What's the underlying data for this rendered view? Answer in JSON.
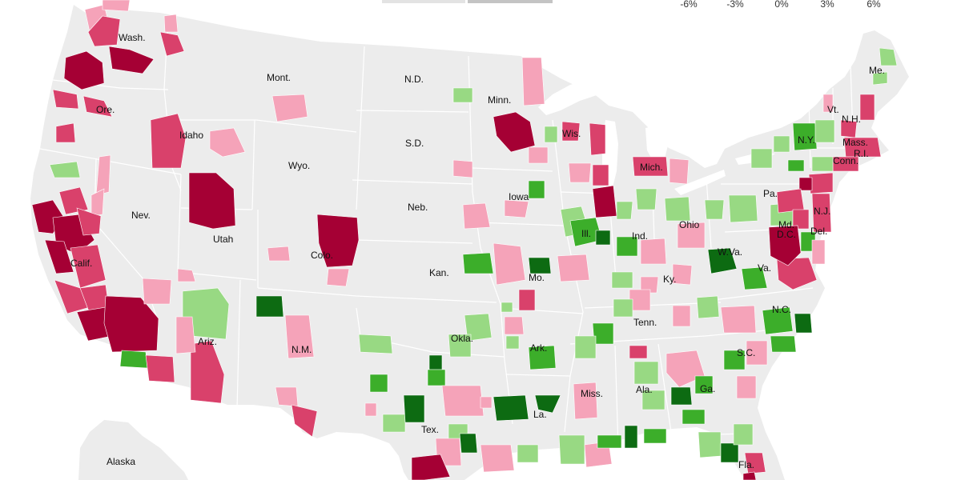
{
  "legend": {
    "ticks": [
      "-6%",
      "-3%",
      "0%",
      "3%",
      "6%"
    ],
    "scale_colors": [
      "#a50034",
      "#d9416b",
      "#f5a3b9",
      "#eeeeee",
      "#98d983",
      "#3cae2a",
      "#0d6b12"
    ]
  },
  "colors": {
    "land": "#ececec",
    "border": "#ffffff",
    "water": "#ffffff",
    "dark_red": "#a50034",
    "mid_red": "#d9416b",
    "light_red": "#f5a3b9",
    "light_green": "#98d983",
    "mid_green": "#3cae2a",
    "dark_green": "#0d6b12"
  },
  "state_labels": {
    "wash": "Wash.",
    "ore": "Ore.",
    "calif": "Calif.",
    "nev": "Nev.",
    "idaho": "Idaho",
    "mont": "Mont.",
    "wyo": "Wyo.",
    "utah": "Utah",
    "colo": "Colo.",
    "ariz": "Ariz.",
    "nm": "N.M.",
    "nd": "N.D.",
    "sd": "S.D.",
    "neb": "Neb.",
    "kan": "Kan.",
    "okla": "Okla.",
    "tex": "Tex.",
    "minn": "Minn.",
    "iowa": "Iowa",
    "mo": "Mo.",
    "ark": "Ark.",
    "la": "La.",
    "wis": "Wis.",
    "ill": "Ill.",
    "mich": "Mich.",
    "ind": "Ind.",
    "ohio": "Ohio",
    "ky": "Ky.",
    "tenn": "Tenn.",
    "miss": "Miss.",
    "ala": "Ala.",
    "ga": "Ga.",
    "fla": "Fla.",
    "sc": "S.C.",
    "nc": "N.C.",
    "va": "Va.",
    "wva": "W.Va.",
    "pa": "Pa.",
    "ny": "N.Y.",
    "vt": "Vt.",
    "nh": "N.H.",
    "me": "Me.",
    "mass": "Mass.",
    "ri": "R.I.",
    "conn": "Conn.",
    "nj": "N.J.",
    "del": "Del.",
    "md": "Md.",
    "dc": "D.C.",
    "alaska": "Alaska"
  }
}
